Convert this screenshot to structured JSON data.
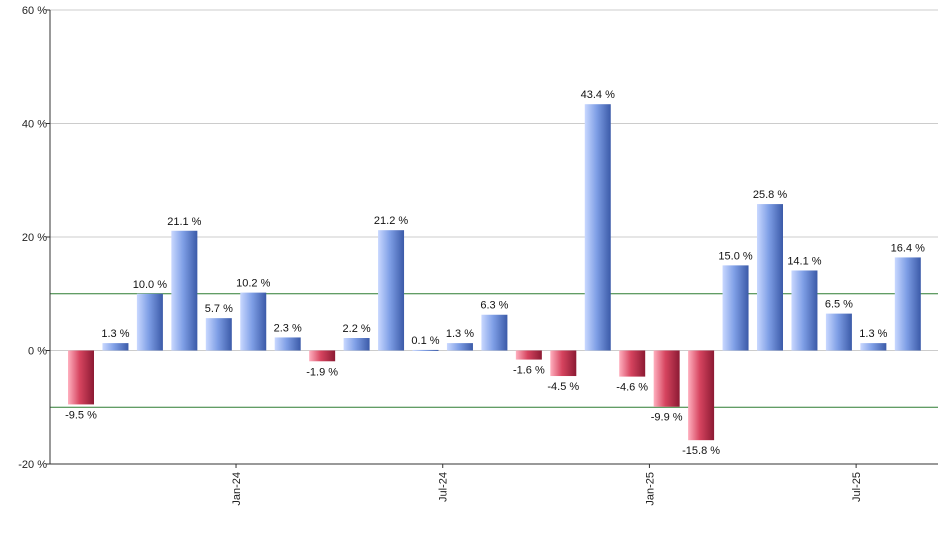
{
  "chart_data": {
    "type": "bar",
    "title": "",
    "xlabel": "",
    "ylabel": "",
    "ylim": [
      -20,
      60
    ],
    "grid": true,
    "value_suffix": " %",
    "y_ticks": [
      -20,
      0,
      20,
      40,
      60
    ],
    "y_tick_labels": [
      "-20 %",
      "0 %",
      "20 %",
      "40 %",
      "60 %"
    ],
    "reference_lines": [
      10,
      -10
    ],
    "x_tick_labels": [
      {
        "index": 4.5,
        "label": "Jan-24"
      },
      {
        "index": 10.5,
        "label": "Jul-24"
      },
      {
        "index": 16.5,
        "label": "Jan-25"
      },
      {
        "index": 22.5,
        "label": "Jul-25"
      }
    ],
    "values": [
      -9.5,
      1.3,
      10.0,
      21.1,
      5.7,
      10.2,
      2.3,
      -1.9,
      2.2,
      21.2,
      0.1,
      1.3,
      6.3,
      -1.6,
      -4.5,
      43.4,
      -4.6,
      -9.9,
      -15.8,
      15.0,
      25.8,
      14.1,
      6.5,
      1.3,
      16.4
    ],
    "data_labels": [
      "-9.5 %",
      "1.3 %",
      "10.0 %",
      "21.1 %",
      "5.7 %",
      "10.2 %",
      "2.3 %",
      "-1.9 %",
      "2.2 %",
      "21.2 %",
      "0.1 %",
      "1.3 %",
      "6.3 %",
      "-1.6 %",
      "-4.5 %",
      "43.4 %",
      "-4.6 %",
      "-9.9 %",
      "-15.8 %",
      "15.0 %",
      "25.8 %",
      "14.1 %",
      "6.5 %",
      "1.3 %",
      "16.4 %"
    ],
    "colors": {
      "positive_light": "#c9d8ff",
      "positive_mid": "#7f9fe6",
      "positive_dark": "#3b5aa8",
      "negative_light": "#ffb0bf",
      "negative_mid": "#d6445f",
      "negative_dark": "#8c1a33",
      "grid": "#cccccc",
      "reference": "#2e7d32",
      "axis": "#333333"
    }
  }
}
